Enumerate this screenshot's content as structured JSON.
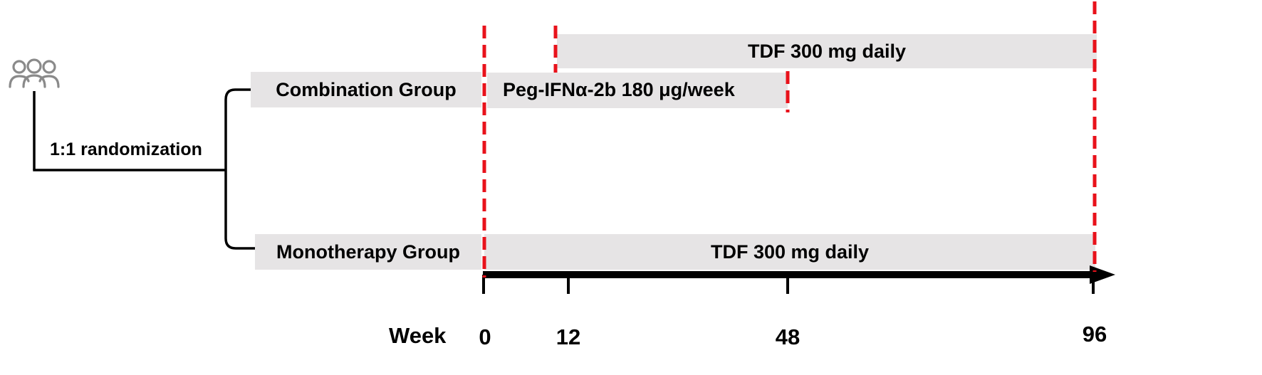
{
  "randomization": {
    "label": "1:1 randomization",
    "icon": "people-group-icon"
  },
  "groups": {
    "combination": {
      "label": "Combination Group",
      "tdf_label": "TDF 300 mg daily",
      "peg_label": "Peg-IFNα-2b 180 μg/week"
    },
    "monotherapy": {
      "label": "Monotherapy Group",
      "tdf_label": "TDF 300 mg daily"
    }
  },
  "timeline": {
    "axis_label": "Week",
    "ticks": [
      "0",
      "12",
      "48",
      "96"
    ]
  },
  "colors": {
    "bar_fill": "#e6e4e5",
    "marker_red": "#e8121b",
    "line_black": "#000000",
    "icon_gray": "#8a8a8a"
  }
}
